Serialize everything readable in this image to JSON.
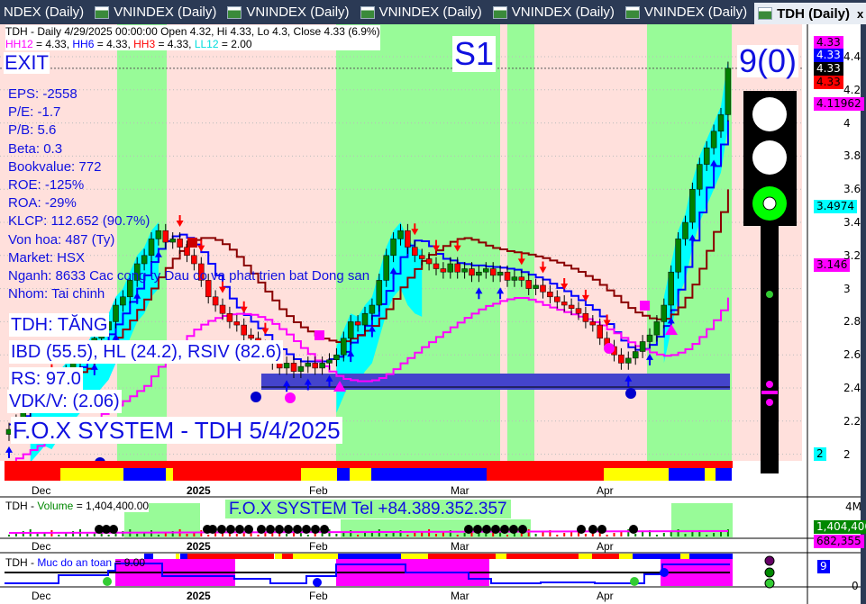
{
  "tabs": [
    {
      "label": "NDEX (Daily)"
    },
    {
      "label": "VNINDEX (Daily)"
    },
    {
      "label": "VNINDEX (Daily)"
    },
    {
      "label": "VNINDEX (Daily)"
    },
    {
      "label": "VNINDEX (Daily)"
    },
    {
      "label": "VNINDEX (Daily)"
    },
    {
      "label": "TDH (Daily)",
      "active": true
    }
  ],
  "tab_close": "x",
  "nav_prev": "◀",
  "nav_next": "▶",
  "header": {
    "line1": "TDH - Daily 4/29/2025 00:00:00 Open 4.32, Hi 4.33, Lo 4.3, Close 4.33 (6.9%)",
    "hh12": "HH12",
    "hh12v": " = 4.33, ",
    "hh6": "HH6",
    "hh6v": " = 4.33, ",
    "hh3": "HH3",
    "hh3v": " = 4.33, ",
    "ll12": "LL12",
    "ll12v": " = 2.00"
  },
  "signal": {
    "exit": "EXIT",
    "s1": "S1",
    "count": "9(0)"
  },
  "fundamentals": [
    "EPS: -2558",
    "P/E: -1.7",
    "P/B: 5.6",
    "Beta: 0.3",
    "Bookvalue: 772",
    "ROE: -125%",
    "ROA: -29%",
    "KLCP: 112.652 (90.7%)",
    "Von hoa: 487 (Ty)",
    "Market: HSX",
    "Nganh: 8633 Cac cong ty Dau co va phat trien bat Dong san",
    "Nhom: Tai chinh"
  ],
  "status": {
    "trend": "TDH: TĂNG",
    "ibd": "IBD (55.5), HL (24.2), RSIV (82.6)",
    "rs": "RS: 97.0",
    "vdk": "VDK/V:  (2.06)",
    "brand": "F.O.X SYSTEM - TDH 5/4/2025"
  },
  "price_labels": [
    {
      "v": "4.33",
      "color": "#ff00ff"
    },
    {
      "v": "4.33",
      "color": "#0000ff"
    },
    {
      "v": "4.33",
      "color": "#000000"
    },
    {
      "v": "4.33",
      "color": "#ff0000"
    },
    {
      "v": "4.11962",
      "color": "#ff00ff"
    },
    {
      "v": "3.4974",
      "color": "#00ffff"
    },
    {
      "v": "3.146",
      "color": "#ff00ff"
    },
    {
      "v": "2",
      "color": "#00ffff"
    }
  ],
  "volume": {
    "title_prefix": "TDH - ",
    "title_name": "Volume",
    "title_value": " = 1,404,400.00",
    "brand": "F.O.X SYSTEM Tel +84.389.352.357",
    "axis": [
      "4M"
    ],
    "last": "1,404,400",
    "avg": "682,355"
  },
  "safety": {
    "title_prefix": "TDH - ",
    "title_name": "Muc do an toan",
    "title_value": " = 9.00",
    "last": "9",
    "axis": [
      "0"
    ]
  },
  "colors": {
    "up": "#008000",
    "down": "#ff0000",
    "green_zone": "#98fb98",
    "pink_zone": "#ffe0dc",
    "accent": "#1010e0"
  },
  "chart_data": {
    "type": "candlestick",
    "symbol": "TDH",
    "interval": "Daily",
    "x_ticks": [
      "Dec",
      "2025",
      "Feb",
      "Mar",
      "Apr"
    ],
    "y_ticks": [
      4.4,
      4.2,
      4.0,
      3.8,
      3.6,
      3.4,
      3.2,
      3.0,
      2.8,
      2.6,
      2.4,
      2.2,
      2.0
    ],
    "ylim": [
      1.9,
      4.5
    ],
    "last": {
      "open": 4.32,
      "high": 4.33,
      "low": 4.3,
      "close": 4.33,
      "change_pct": 6.9
    },
    "close": [
      2.15,
      2.2,
      2.25,
      2.3,
      2.35,
      2.4,
      2.38,
      2.45,
      2.5,
      2.55,
      2.6,
      2.62,
      2.7,
      2.75,
      2.8,
      2.9,
      2.95,
      3.05,
      3.15,
      3.2,
      3.3,
      3.35,
      3.28,
      3.3,
      3.25,
      3.2,
      3.15,
      3.05,
      2.95,
      2.9,
      2.85,
      2.8,
      2.78,
      2.72,
      2.7,
      2.65,
      2.6,
      2.55,
      2.52,
      2.55,
      2.5,
      2.53,
      2.55,
      2.52,
      2.55,
      2.57,
      2.6,
      2.7,
      2.8,
      2.78,
      2.85,
      2.9,
      3.05,
      3.2,
      3.3,
      3.35,
      3.25,
      3.2,
      3.18,
      3.15,
      3.12,
      3.1,
      3.15,
      3.1,
      3.12,
      3.08,
      3.1,
      3.12,
      3.08,
      3.1,
      3.05,
      3.07,
      3.05,
      3.0,
      3.02,
      2.98,
      2.95,
      2.92,
      2.9,
      2.88,
      2.85,
      2.8,
      2.78,
      2.7,
      2.65,
      2.6,
      2.55,
      2.58,
      2.62,
      2.68,
      2.72,
      2.8,
      2.9,
      3.1,
      3.3,
      3.4,
      3.6,
      3.75,
      3.85,
      3.95,
      4.05,
      4.33
    ],
    "grid": true
  }
}
